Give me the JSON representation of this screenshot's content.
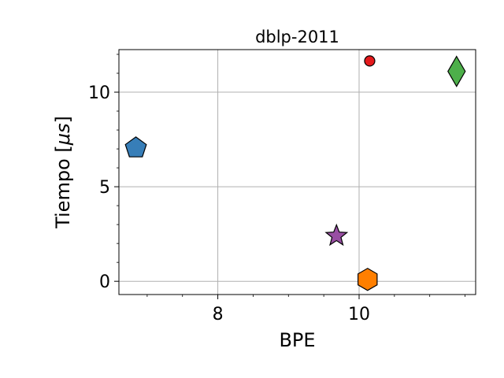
{
  "chart_data": {
    "type": "scatter",
    "title": "dblp-2011",
    "xlabel": "BPE",
    "ylabel_text": "Tiempo [",
    "ylabel_mu": "μ",
    "ylabel_s": "s",
    "ylabel_close": "]",
    "xlim": [
      6.6,
      11.65
    ],
    "ylim": [
      -0.7,
      12.25
    ],
    "xticks": [
      8,
      10
    ],
    "xtick_labels": [
      "8",
      "10"
    ],
    "xticks_minor": [
      7,
      7.5,
      8.5,
      9,
      9.5,
      10.5,
      11,
      11.5
    ],
    "yticks": [
      0,
      5,
      10
    ],
    "ytick_labels": [
      "0",
      "5",
      "10"
    ],
    "yticks_minor": [
      1,
      2,
      3,
      4,
      6,
      7,
      8,
      9,
      11,
      12
    ],
    "grid": true,
    "points": [
      {
        "x": 6.84,
        "y": 7.05,
        "marker": "pentagon",
        "color": "#377eb8"
      },
      {
        "x": 9.68,
        "y": 2.4,
        "marker": "star",
        "color": "#984ea3"
      },
      {
        "x": 10.12,
        "y": 0.1,
        "marker": "hexagon",
        "color": "#ff7f00"
      },
      {
        "x": 10.15,
        "y": 11.65,
        "marker": "circle",
        "color": "#e41a1c"
      },
      {
        "x": 11.38,
        "y": 11.1,
        "marker": "diamond",
        "color": "#4daf4a"
      }
    ]
  }
}
